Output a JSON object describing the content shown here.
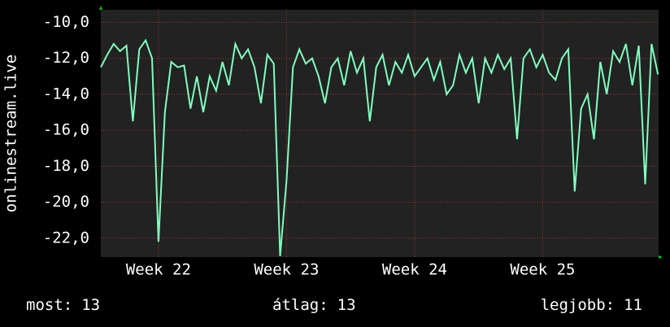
{
  "chart_data": {
    "type": "line",
    "y_label": "onlinestream.live",
    "xlim": [
      21.55,
      25.905
    ],
    "ylim": [
      -23.05,
      -9.3
    ],
    "xticks": [
      {
        "value": 22,
        "label": "Week 22"
      },
      {
        "value": 23,
        "label": "Week 23"
      },
      {
        "value": 24,
        "label": "Week 24"
      },
      {
        "value": 25,
        "label": "Week 25"
      }
    ],
    "yticks": [
      {
        "value": -10,
        "label": "-10,0"
      },
      {
        "value": -12,
        "label": "-12,0"
      },
      {
        "value": -14,
        "label": "-14,0"
      },
      {
        "value": -16,
        "label": "-16,0"
      },
      {
        "value": -18,
        "label": "-18,0"
      },
      {
        "value": -20,
        "label": "-20,0"
      },
      {
        "value": -22,
        "label": "-22,0"
      }
    ],
    "grid": true,
    "x": [
      21.55,
      21.6,
      21.65,
      21.7,
      21.75,
      21.8,
      21.85,
      21.9,
      21.95,
      22.0,
      22.05,
      22.1,
      22.15,
      22.2,
      22.25,
      22.3,
      22.35,
      22.4,
      22.45,
      22.5,
      22.55,
      22.6,
      22.65,
      22.7,
      22.75,
      22.8,
      22.85,
      22.9,
      22.95,
      23.0,
      23.05,
      23.1,
      23.15,
      23.2,
      23.25,
      23.3,
      23.35,
      23.4,
      23.45,
      23.5,
      23.55,
      23.6,
      23.65,
      23.7,
      23.75,
      23.8,
      23.85,
      23.9,
      23.95,
      24.0,
      24.05,
      24.1,
      24.15,
      24.2,
      24.25,
      24.3,
      24.35,
      24.4,
      24.45,
      24.5,
      24.55,
      24.6,
      24.65,
      24.7,
      24.75,
      24.8,
      24.85,
      24.9,
      24.95,
      25.0,
      25.05,
      25.1,
      25.15,
      25.2,
      25.25,
      25.3,
      25.35,
      25.4,
      25.45,
      25.5,
      25.55,
      25.6,
      25.65,
      25.7,
      25.75,
      25.8,
      25.85,
      25.9
    ],
    "series": [
      {
        "color": "#7fffbf",
        "values": [
          -12.5,
          -11.8,
          -11.2,
          -11.6,
          -11.3,
          -15.5,
          -11.5,
          -11,
          -12,
          -22.2,
          -15,
          -12.2,
          -12.5,
          -12.4,
          -14.8,
          -13,
          -15,
          -13,
          -13.8,
          -12.2,
          -13.5,
          -11.2,
          -12,
          -11.5,
          -12.5,
          -14.5,
          -11.8,
          -12.3,
          -23,
          -18.8,
          -12.5,
          -11.5,
          -12.3,
          -12,
          -13,
          -14.5,
          -12.5,
          -12,
          -13.5,
          -11.6,
          -12.8,
          -12,
          -15.5,
          -12.5,
          -11.8,
          -13.5,
          -12.2,
          -12.8,
          -11.8,
          -13,
          -12.5,
          -12,
          -13.2,
          -12.2,
          -14,
          -13.5,
          -11.8,
          -12.8,
          -12,
          -14.5,
          -12,
          -12.8,
          -11.8,
          -12.6,
          -12,
          -16.5,
          -12,
          -11.5,
          -12.5,
          -11.8,
          -12.8,
          -13.2,
          -12,
          -11.5,
          -19.4,
          -14.8,
          -14,
          -16.5,
          -12.2,
          -14,
          -11.6,
          -12.2,
          -11.2,
          -13.5,
          -11.3,
          -19,
          -11.2,
          -12.9
        ]
      }
    ],
    "stats": [
      {
        "label": "most:",
        "value": 13
      },
      {
        "label": "átlag:",
        "value": 13
      },
      {
        "label": "legjobb:",
        "value": 11
      }
    ]
  }
}
